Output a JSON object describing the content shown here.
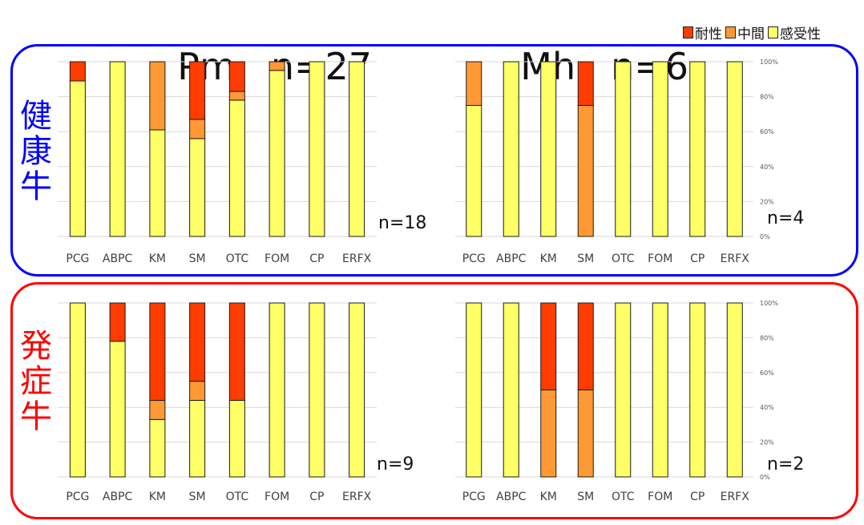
{
  "titles": {
    "pm": "Pm",
    "pm_n": "n=27",
    "mh": "Mh",
    "mh_n": "n=6"
  },
  "legend": [
    {
      "label": "耐性",
      "color": "#ff3c00"
    },
    {
      "label": "中間",
      "color": "#ff9933"
    },
    {
      "label": "感受性",
      "color": "#ffff66"
    }
  ],
  "rows": {
    "healthy": {
      "label": "健康牛",
      "border_color": "#0000ff"
    },
    "sick": {
      "label": "発症牛",
      "border_color": "#ff0000"
    }
  },
  "y_ticks": [
    "0%",
    "20%",
    "40%",
    "60%",
    "80%",
    "100%"
  ],
  "chart_data": [
    {
      "type": "bar",
      "stacked": true,
      "id": "pm-healthy",
      "categories": [
        "PCG",
        "ABPC",
        "KM",
        "SM",
        "OTC",
        "FOM",
        "CP",
        "ERFX"
      ],
      "series": [
        {
          "name": "感受性",
          "values": [
            89,
            100,
            61,
            56,
            78,
            95,
            100,
            100
          ]
        },
        {
          "name": "中間",
          "values": [
            0,
            0,
            39,
            11,
            5,
            5,
            0,
            0
          ]
        },
        {
          "name": "耐性",
          "values": [
            11,
            0,
            0,
            33,
            17,
            0,
            0,
            0
          ]
        }
      ],
      "n_label": "n=18",
      "ylim": [
        0,
        100
      ]
    },
    {
      "type": "bar",
      "stacked": true,
      "id": "mh-healthy",
      "categories": [
        "PCG",
        "ABPC",
        "KM",
        "SM",
        "OTC",
        "FOM",
        "CP",
        "ERFX"
      ],
      "series": [
        {
          "name": "感受性",
          "values": [
            75,
            100,
            100,
            0,
            100,
            100,
            100,
            100
          ]
        },
        {
          "name": "中間",
          "values": [
            25,
            0,
            0,
            75,
            0,
            0,
            0,
            0
          ]
        },
        {
          "name": "耐性",
          "values": [
            0,
            0,
            0,
            25,
            0,
            0,
            0,
            0
          ]
        }
      ],
      "n_label": "n=4",
      "ylim": [
        0,
        100
      ]
    },
    {
      "type": "bar",
      "stacked": true,
      "id": "pm-sick",
      "categories": [
        "PCG",
        "ABPC",
        "KM",
        "SM",
        "OTC",
        "FOM",
        "CP",
        "ERFX"
      ],
      "series": [
        {
          "name": "感受性",
          "values": [
            100,
            78,
            33,
            44,
            44,
            100,
            100,
            100
          ]
        },
        {
          "name": "中間",
          "values": [
            0,
            0,
            11,
            11,
            0,
            0,
            0,
            0
          ]
        },
        {
          "name": "耐性",
          "values": [
            0,
            22,
            56,
            45,
            56,
            0,
            0,
            0
          ]
        }
      ],
      "n_label": "n=9",
      "ylim": [
        0,
        100
      ]
    },
    {
      "type": "bar",
      "stacked": true,
      "id": "mh-sick",
      "categories": [
        "PCG",
        "ABPC",
        "KM",
        "SM",
        "OTC",
        "FOM",
        "CP",
        "ERFX"
      ],
      "series": [
        {
          "name": "感受性",
          "values": [
            100,
            100,
            0,
            0,
            100,
            100,
            100,
            100
          ]
        },
        {
          "name": "中間",
          "values": [
            0,
            0,
            50,
            50,
            0,
            0,
            0,
            0
          ]
        },
        {
          "name": "耐性",
          "values": [
            0,
            0,
            50,
            50,
            0,
            0,
            0,
            0
          ]
        }
      ],
      "n_label": "n=2",
      "ylim": [
        0,
        100
      ]
    }
  ]
}
